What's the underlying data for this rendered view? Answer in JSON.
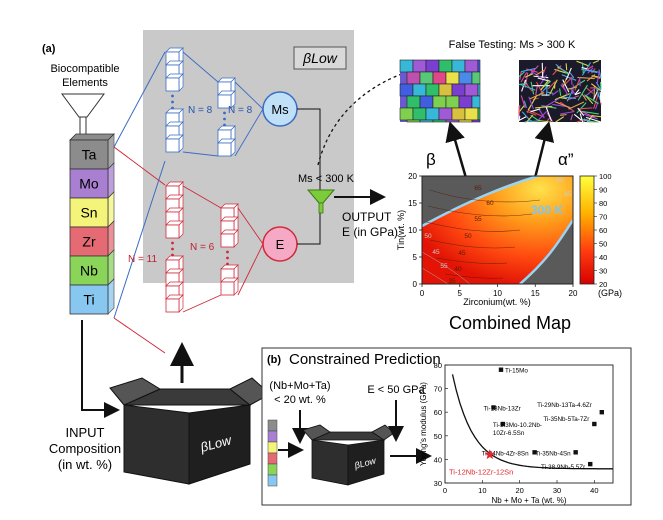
{
  "panel_a": {
    "label": "(a)",
    "elements_title_line1": "Biocompatible",
    "elements_title_line2": "Elements",
    "elements": [
      {
        "symbol": "Ta",
        "color": "#8c8c8c"
      },
      {
        "symbol": "Mo",
        "color": "#a87fd1"
      },
      {
        "symbol": "Sn",
        "color": "#f4f47a"
      },
      {
        "symbol": "Zr",
        "color": "#e66a73"
      },
      {
        "symbol": "Nb",
        "color": "#8ad45a"
      },
      {
        "symbol": "Ti",
        "color": "#87c7f0"
      }
    ],
    "model_label": "βLow",
    "ms_node": "Ms",
    "e_node": "E",
    "n_labels": [
      "N = 8",
      "N = 8",
      "N = 11",
      "N = 6"
    ],
    "ms_condition": "Ms < 300 K",
    "output_line1": "OUTPUT",
    "output_line2": "E (in GPa)",
    "false_testing": "False Testing: Ms > 300 K",
    "beta_label": "β",
    "alpha_label": "α”",
    "input_line1": "INPUT",
    "input_line2": "Composition",
    "input_line3": "(in wt. %)",
    "box_label": "βLow",
    "combined_map_title": "Combined Map"
  },
  "combined_map": {
    "xlabel": "Zirconium(wt. %)",
    "ylabel": "Tin(wt. %)",
    "xticks": [
      "0",
      "5",
      "10",
      "15",
      "20"
    ],
    "yticks": [
      "0",
      "5",
      "10",
      "15",
      "20"
    ],
    "colorbar_ticks": [
      "100",
      "90",
      "80",
      "70",
      "60",
      "50",
      "40",
      "30",
      "20"
    ],
    "colorbar_unit": "(GPa)",
    "boundary_label": "300 K",
    "contour_labels": [
      "65",
      "60",
      "55",
      "50",
      "45",
      "40",
      "35",
      "50",
      "45",
      "55",
      "60",
      "65"
    ]
  },
  "panel_b": {
    "label": "(b)",
    "title": "Constrained Prediction",
    "constraint_line1": "(Nb+Mo+Ta)",
    "constraint_line2": "< 20 wt. %",
    "e_constraint": "E < 50 GPa",
    "box_label": "βLow"
  },
  "chart_data": {
    "type": "scatter",
    "xlabel": "Nb + Mo + Ta (wt. %)",
    "ylabel": "Young's modulus (GPa)",
    "xlim": [
      0,
      45
    ],
    "ylim": [
      30,
      80
    ],
    "xticks": [
      0,
      10,
      20,
      30,
      40
    ],
    "yticks": [
      30,
      40,
      50,
      60,
      70,
      80
    ],
    "points": [
      {
        "label": "Ti-15Mo",
        "x": 15,
        "y": 78
      },
      {
        "label": "Ti-13Nb-13Zr",
        "x": 13,
        "y": 62
      },
      {
        "label": "Ti-5.3Mo-10.2Nb-10Zr-6.5Sn",
        "x": 15.5,
        "y": 55
      },
      {
        "label": "Ti-29Nb-13Ta-4.6Zr",
        "x": 42,
        "y": 60
      },
      {
        "label": "Ti-35Nb-5Ta-7Zr",
        "x": 40,
        "y": 55
      },
      {
        "label": "Ti-24Nb-4Zr-8Sn",
        "x": 24,
        "y": 43
      },
      {
        "label": "Ti-35Nb-4Sn",
        "x": 35,
        "y": 43
      },
      {
        "label": "Ti-38.9Nb-5.5Zr",
        "x": 38.9,
        "y": 38
      }
    ],
    "highlight": {
      "label": "Ti-12Nb-12Zr-12Sn",
      "x": 12,
      "y": 42,
      "color": "#e2262b"
    }
  }
}
